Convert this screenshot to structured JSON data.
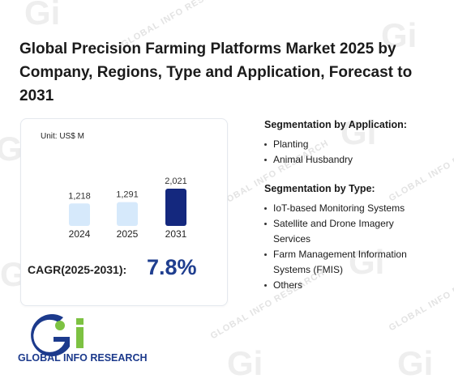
{
  "report": {
    "title": "Global Precision Farming Platforms Market 2025 by Company, Regions, Type and Application, Forecast to 2031"
  },
  "chart_data": {
    "type": "bar",
    "unit_label": "Unit: US$ M",
    "categories": [
      "2024",
      "2025",
      "2031"
    ],
    "values": [
      1218,
      1291,
      2021
    ],
    "value_labels": [
      "1,218",
      "1,291",
      "2,021"
    ],
    "highlight_colors": [
      "#d6e9fb",
      "#d6e9fb",
      "#14287e"
    ],
    "cagr_label": "CAGR(2025-2031):",
    "cagr_value": "7.8%"
  },
  "segmentation": {
    "application": {
      "heading": "Segmentation by Application:",
      "items": [
        "Planting",
        "Animal Husbandry"
      ]
    },
    "type": {
      "heading": "Segmentation by Type:",
      "items": [
        "IoT-based Monitoring Systems",
        "Satellite and Drone Imagery Services",
        "Farm Management Information Systems (FMIS)",
        "Others"
      ]
    }
  },
  "logo": {
    "text": "GLOBAL INFO RESEARCH"
  },
  "watermark": {
    "text": "GLOBAL INFO RESEARCH"
  },
  "colors": {
    "accent": "#1f3e8f",
    "bar_light": "#d6e9fb",
    "bar_dark": "#14287e",
    "logo_green": "#7dc242",
    "logo_blue": "#1c3a8c"
  }
}
